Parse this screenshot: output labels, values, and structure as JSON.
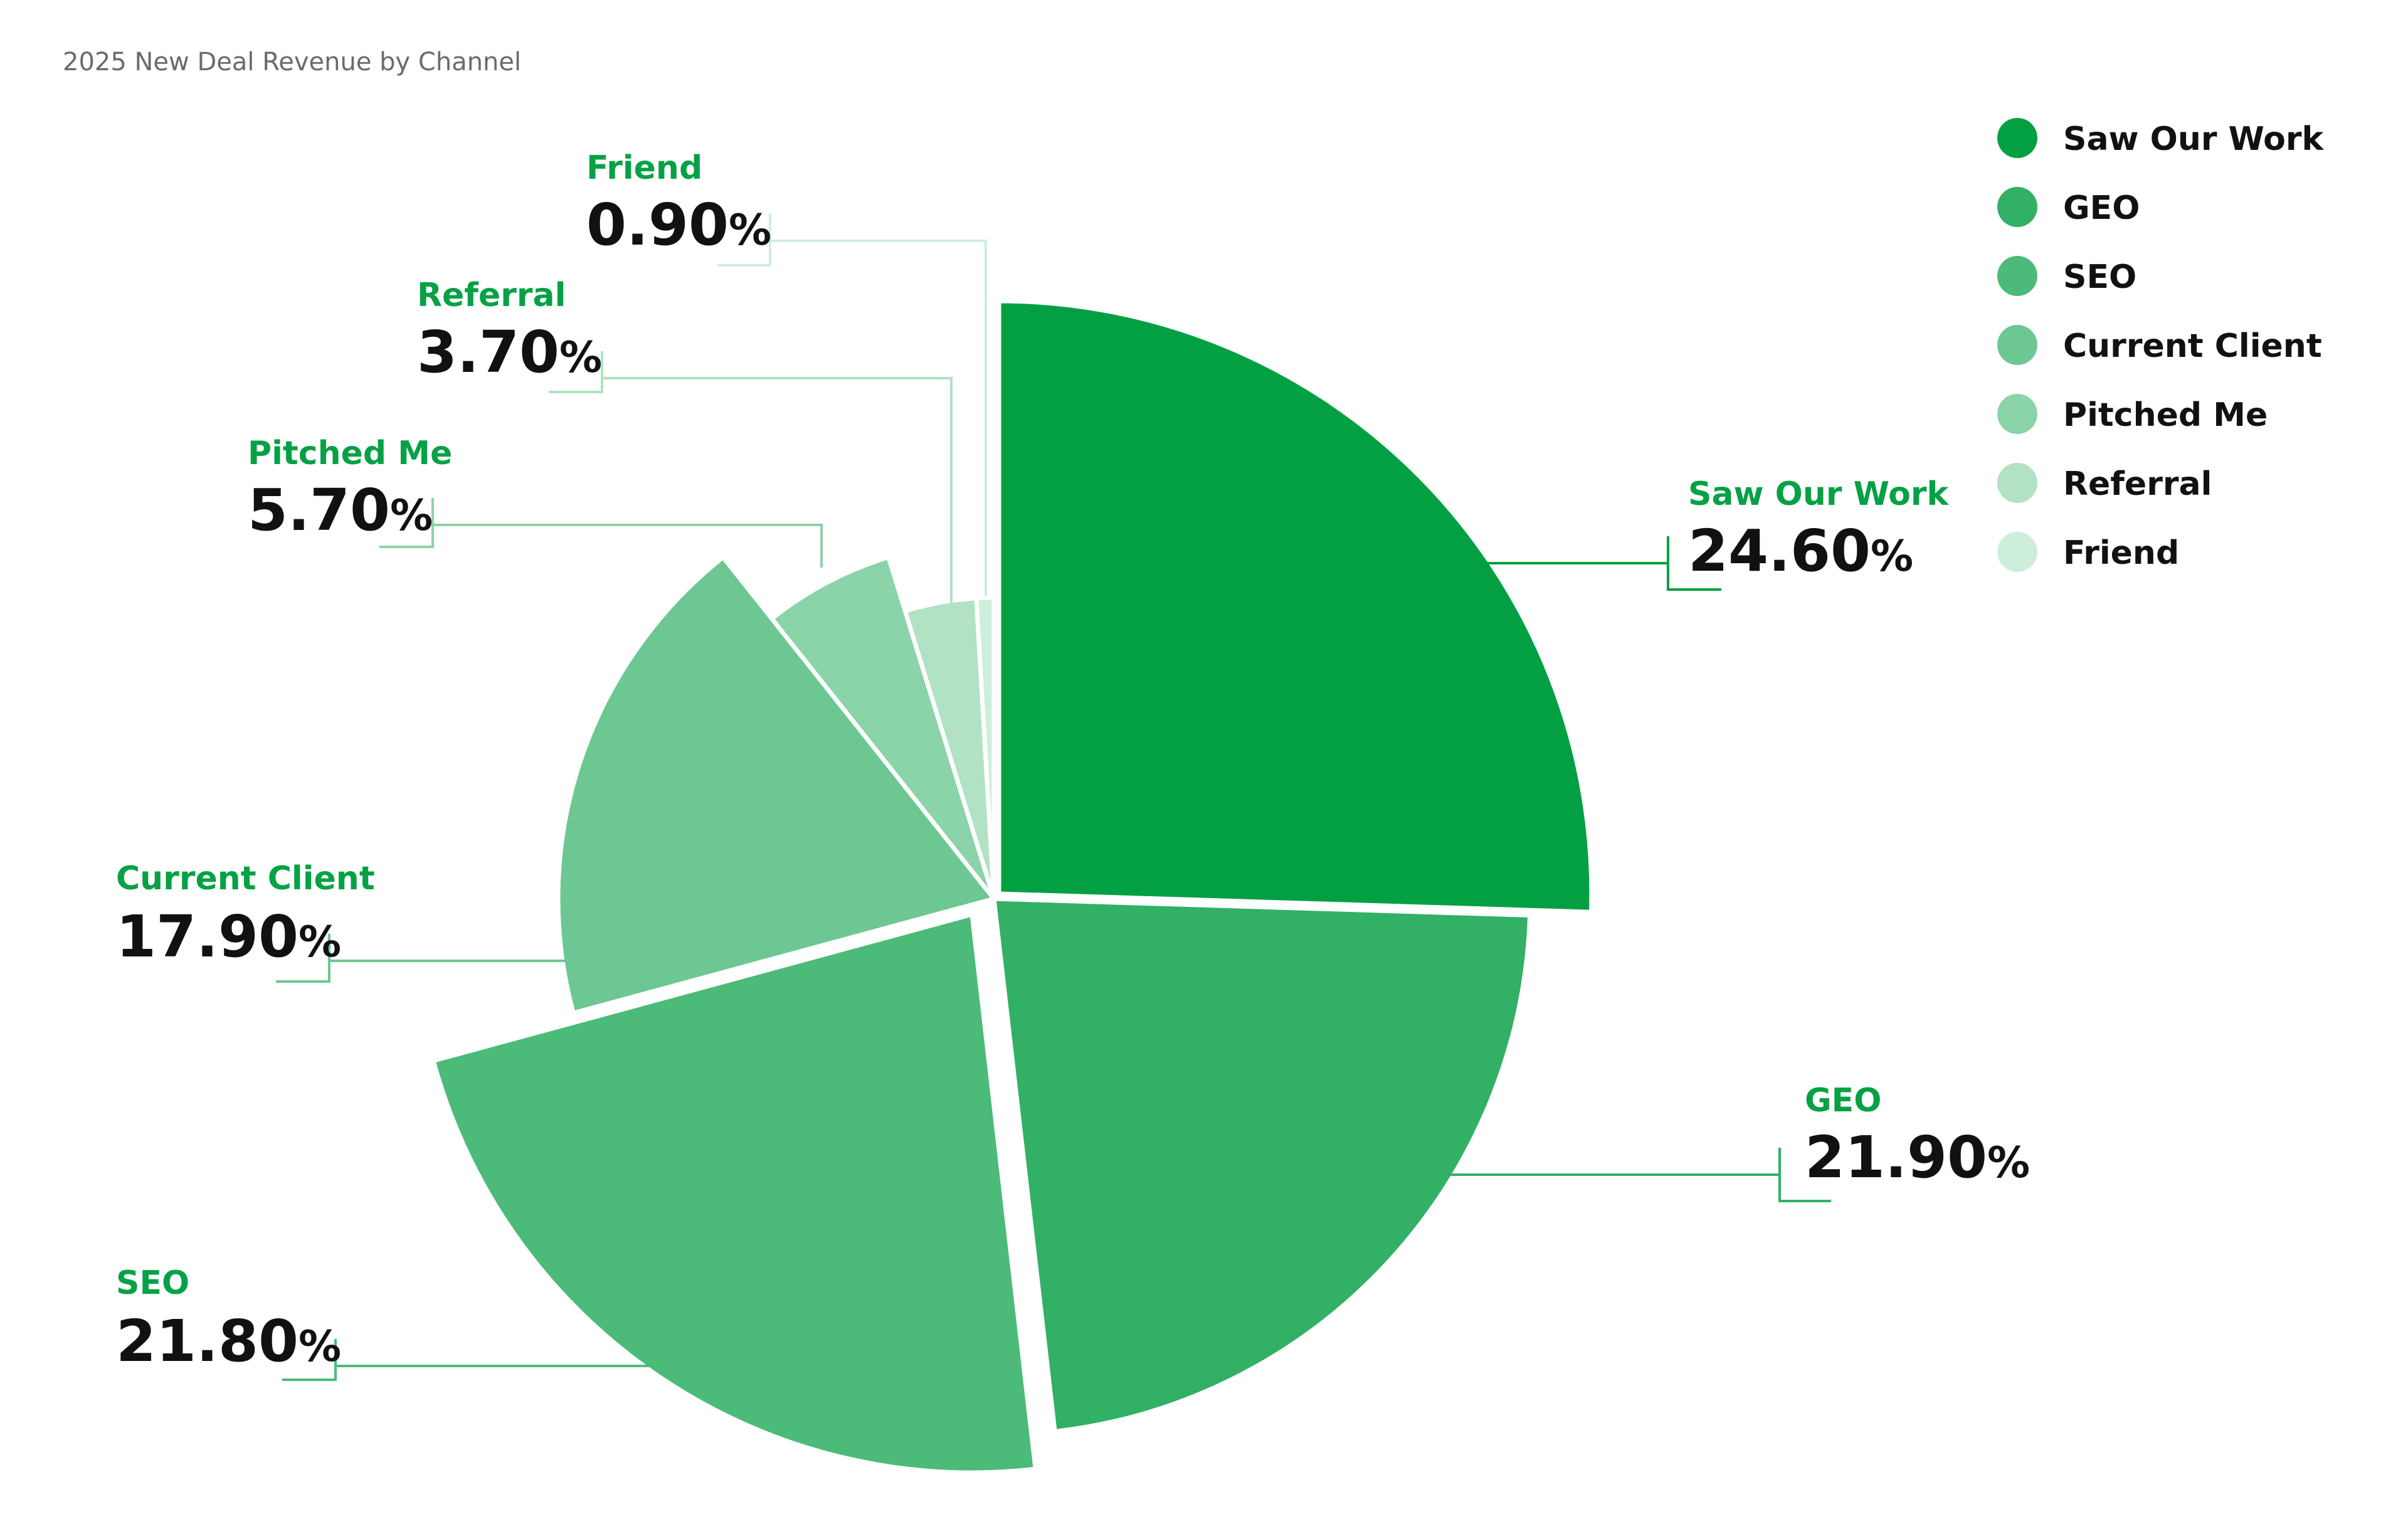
{
  "chart_data": {
    "type": "pie",
    "title": "2025 New Deal Revenue by Channel",
    "unit": "%",
    "legend_position": "top-right",
    "slices": [
      {
        "label": "Saw Our Work",
        "value": 24.6,
        "display": "24.60",
        "color": "#02a043"
      },
      {
        "label": "GEO",
        "value": 21.9,
        "display": "21.90",
        "color": "#32b065"
      },
      {
        "label": "SEO",
        "value": 21.8,
        "display": "21.80",
        "color": "#4cbb7a"
      },
      {
        "label": "Current Client",
        "value": 17.9,
        "display": "17.90",
        "color": "#6dc792"
      },
      {
        "label": "Pitched Me",
        "value": 5.7,
        "display": "5.70",
        "color": "#8bd3a8"
      },
      {
        "label": "Referral",
        "value": 3.7,
        "display": "3.70",
        "color": "#b0e2c3"
      },
      {
        "label": "Friend",
        "value": 0.9,
        "display": "0.90",
        "color": "#cdeedb"
      }
    ]
  }
}
